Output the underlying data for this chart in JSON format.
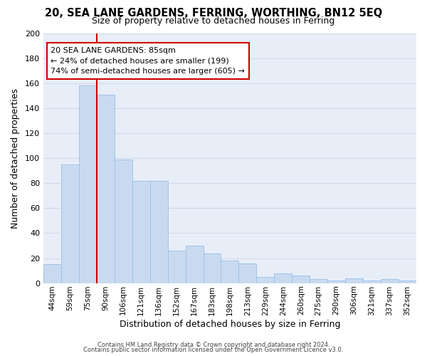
{
  "title": "20, SEA LANE GARDENS, FERRING, WORTHING, BN12 5EQ",
  "subtitle": "Size of property relative to detached houses in Ferring",
  "xlabel": "Distribution of detached houses by size in Ferring",
  "ylabel": "Number of detached properties",
  "categories": [
    "44sqm",
    "59sqm",
    "75sqm",
    "90sqm",
    "106sqm",
    "121sqm",
    "136sqm",
    "152sqm",
    "167sqm",
    "183sqm",
    "198sqm",
    "213sqm",
    "229sqm",
    "244sqm",
    "260sqm",
    "275sqm",
    "290sqm",
    "306sqm",
    "321sqm",
    "337sqm",
    "352sqm"
  ],
  "values": [
    15,
    95,
    158,
    151,
    99,
    82,
    82,
    26,
    30,
    24,
    18,
    16,
    5,
    8,
    6,
    3,
    2,
    4,
    2,
    3,
    2
  ],
  "bar_color": "#c9daf0",
  "bar_edge_color": "#a0c4e8",
  "vline_color": "#cc0000",
  "annotation_title": "20 SEA LANE GARDENS: 85sqm",
  "annotation_line1": "← 24% of detached houses are smaller (199)",
  "annotation_line2": "74% of semi-detached houses are larger (605) →",
  "annotation_box_color": "#cc0000",
  "ylim": [
    0,
    200
  ],
  "yticks": [
    0,
    20,
    40,
    60,
    80,
    100,
    120,
    140,
    160,
    180,
    200
  ],
  "grid_color": "#d0d8e8",
  "bg_color": "#e8eef8",
  "footer_line1": "Contains HM Land Registry data © Crown copyright and database right 2024.",
  "footer_line2": "Contains public sector information licensed under the Open Government Licence v3.0."
}
